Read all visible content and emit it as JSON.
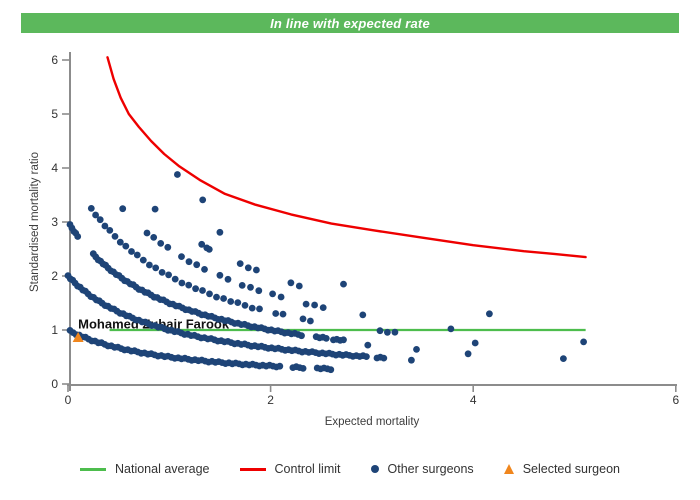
{
  "banner": {
    "text": "In line with expected rate",
    "color": "#5cb85c"
  },
  "chart_data": {
    "type": "scatter",
    "title": "",
    "xlabel": "Expected mortality",
    "ylabel": "Standardised mortality ratio",
    "xlim": [
      0,
      6
    ],
    "ylim": [
      0,
      6
    ],
    "x_ticks": [
      0,
      2,
      4,
      6
    ],
    "y_ticks": [
      0,
      1,
      2,
      3,
      4,
      5,
      6
    ],
    "grid": false,
    "axis_color": "#8c8c8c",
    "tick_label_color": "#333333",
    "axis_title_color": "#3d3d3d",
    "national_average": {
      "y": 1,
      "x_start": 0.41,
      "x_end": 5.11,
      "color": "#4dbd4d"
    },
    "control_limit": {
      "color": "#ee0000",
      "points": [
        [
          0.39,
          6.05
        ],
        [
          0.45,
          5.65
        ],
        [
          0.52,
          5.3
        ],
        [
          0.6,
          5.0
        ],
        [
          0.7,
          4.76
        ],
        [
          0.82,
          4.5
        ],
        [
          0.95,
          4.26
        ],
        [
          1.1,
          4.03
        ],
        [
          1.3,
          3.78
        ],
        [
          1.55,
          3.52
        ],
        [
          1.85,
          3.32
        ],
        [
          2.2,
          3.14
        ],
        [
          2.6,
          2.97
        ],
        [
          3.0,
          2.85
        ],
        [
          3.5,
          2.71
        ],
        [
          4.0,
          2.57
        ],
        [
          4.5,
          2.46
        ],
        [
          4.8,
          2.41
        ],
        [
          5.11,
          2.35
        ]
      ]
    },
    "selected_surgeon": {
      "label": "Mohamed Zubair Farook",
      "x": 0.1,
      "y": 0.86,
      "color": "#f0861d"
    },
    "other_surgeons": {
      "color": "#1e4477",
      "band_model": "smr = deaths / (expected + 1)",
      "bands": [
        {
          "deaths": 1,
          "dense": true,
          "segments": [
            [
              0.02,
              2.12
            ],
            [
              2.22,
              2.34
            ],
            [
              2.46,
              2.6
            ]
          ]
        },
        {
          "deaths": 2,
          "dense": true,
          "segments": [
            [
              0.0,
              2.95
            ],
            [
              3.05,
              3.12
            ]
          ]
        },
        {
          "deaths": 3,
          "dense": true,
          "segments": [
            [
              0.02,
              0.1
            ],
            [
              0.25,
              2.32
            ],
            [
              2.45,
              2.55
            ],
            [
              2.62,
              2.72
            ]
          ]
        },
        {
          "deaths": 4,
          "dense": false,
          "segments": [
            [
              0.23,
              1.95
            ],
            [
              2.05,
              2.18
            ],
            [
              2.32,
              2.42
            ],
            [
              3.08,
              3.24
            ]
          ]
        },
        {
          "deaths": 5,
          "dense": false,
          "segments": [
            [
              0.54,
              0.58
            ],
            [
              0.78,
              1.02
            ],
            [
              1.12,
              1.38
            ],
            [
              1.5,
              1.62
            ],
            [
              1.72,
              1.9
            ],
            [
              2.02,
              2.12
            ],
            [
              2.35,
              2.58
            ]
          ]
        },
        {
          "deaths": 6,
          "dense": false,
          "segments": [
            [
              0.86,
              0.9
            ],
            [
              1.32,
              1.44
            ],
            [
              1.7,
              1.86
            ],
            [
              2.2,
              2.32
            ]
          ]
        }
      ],
      "extra_points": [
        [
          1.08,
          3.88
        ],
        [
          1.33,
          3.41
        ],
        [
          1.5,
          2.81
        ],
        [
          1.37,
          2.52
        ],
        [
          2.72,
          1.85
        ],
        [
          2.91,
          1.28
        ],
        [
          2.96,
          0.72
        ],
        [
          3.39,
          0.44
        ],
        [
          3.44,
          0.64
        ],
        [
          3.78,
          1.02
        ],
        [
          3.95,
          0.56
        ],
        [
          4.02,
          0.76
        ],
        [
          4.16,
          1.3
        ],
        [
          4.89,
          0.47
        ],
        [
          5.09,
          0.78
        ]
      ]
    }
  },
  "legend": {
    "items": [
      {
        "label": "National average",
        "marker": "line",
        "color": "#4dbd4d"
      },
      {
        "label": "Control limit",
        "marker": "line",
        "color": "#ee0000"
      },
      {
        "label": "Other surgeons",
        "marker": "dot",
        "color": "#1e4477"
      },
      {
        "label": "Selected surgeon",
        "marker": "triangle",
        "color": "#f0861d"
      }
    ]
  }
}
